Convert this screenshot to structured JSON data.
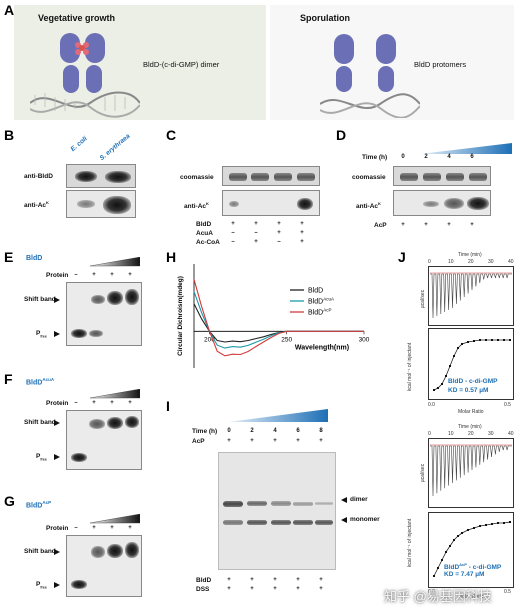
{
  "panels": {
    "A": {
      "label": "A",
      "left_title": "Vegetative growth",
      "left_caption": "BldD-(c-di-GMP) dimer",
      "right_title": "Sporulation",
      "right_caption": "BldD protomers"
    },
    "B": {
      "label": "B",
      "col1": "E. coli",
      "col2": "S. erythraea",
      "row1": "anti-BldD",
      "row2": "anti-Ac"
    },
    "C": {
      "label": "C",
      "row1": "coomassie",
      "row2": "anti-Ac",
      "rows": [
        {
          "name": "BldD",
          "vals": [
            "+",
            "+",
            "+",
            "+"
          ]
        },
        {
          "name": "AcuA",
          "vals": [
            "–",
            "–",
            "+",
            "+"
          ]
        },
        {
          "name": "Ac-CoA",
          "vals": [
            "–",
            "+",
            "–",
            "+"
          ]
        }
      ]
    },
    "D": {
      "label": "D",
      "time_label": "Time (h)",
      "times": [
        "0",
        "2",
        "4",
        "6"
      ],
      "row1": "coomassie",
      "row2": "anti-Ac",
      "acp_label": "AcP",
      "acp_vals": [
        "+",
        "+",
        "+",
        "+"
      ]
    },
    "E": {
      "label": "E",
      "title": "BldD",
      "protein": "Protein",
      "protein_vals": [
        "–",
        "+",
        "+",
        "+"
      ],
      "shift": "Shift band",
      "pfree": "P"
    },
    "F": {
      "label": "F",
      "title": "BldD",
      "title_sup": "AcuA",
      "protein": "Protein",
      "protein_vals": [
        "–",
        "+",
        "+",
        "+"
      ],
      "shift": "Shift band",
      "pfree": "P"
    },
    "G": {
      "label": "G",
      "title": "BldD",
      "title_sup": "AcP",
      "protein": "Protein",
      "protein_vals": [
        "–",
        "+",
        "+",
        "+"
      ],
      "shift": "Shift band",
      "pfree": "P"
    },
    "H": {
      "label": "H",
      "ylabel": "Circular Dichroism(mdeg)",
      "xlabel": "Wavelength(nm)"
    },
    "I": {
      "label": "I",
      "time_label": "Time (h)",
      "times": [
        "0",
        "2",
        "4",
        "6",
        "8"
      ],
      "acp_label": "AcP",
      "acp_vals": [
        "+",
        "+",
        "+",
        "+",
        "+"
      ],
      "dimer": "dimer",
      "monomer": "monomer",
      "rows": [
        {
          "name": "BldD",
          "vals": [
            "+",
            "+",
            "+",
            "+",
            "+"
          ]
        },
        {
          "name": "DSS",
          "vals": [
            "+",
            "+",
            "+",
            "+",
            "+"
          ]
        }
      ]
    },
    "J": {
      "label": "J",
      "top_xlabel": "Time (min)",
      "bottom_xlabel": "Molar Ratio",
      "ylabel_top": "µcal/sec",
      "ylabel_bottom": "kcal mol⁻¹ of injectant",
      "top_name": "BldD - c-di-GMP",
      "top_kd": "KD = 0.57 µM",
      "bottom_name": "BldD",
      "bottom_name_sup": "AcP",
      "bottom_name_rest": " - c-di-GMP",
      "bottom_kd": "KD = 7.47 µM",
      "top_ticks": [
        "0",
        "10",
        "20",
        "30",
        "40"
      ],
      "ratio_ticks": [
        "0.0",
        "0.5"
      ]
    }
  },
  "chart_data": {
    "type": "line",
    "xlabel": "Wavelength(nm)",
    "ylabel": "Circular Dichroism(mdeg)",
    "xlim": [
      190,
      300
    ],
    "x_ticks": [
      200,
      250,
      300
    ],
    "legend_position": "top-right",
    "series": [
      {
        "name": "BldD",
        "color": "#222222",
        "x": [
          190,
          195,
          200,
          205,
          210,
          215,
          220,
          225,
          230,
          235,
          240,
          245,
          250,
          260,
          280,
          300
        ],
        "y": [
          9,
          4,
          0,
          -3,
          -3.5,
          -3.2,
          -3.4,
          -3,
          -2.4,
          -1.8,
          -1,
          -0.4,
          0,
          0,
          0,
          0
        ]
      },
      {
        "name": "BldD",
        "sup": "AcuA",
        "color": "#1a9aa6",
        "x": [
          190,
          195,
          200,
          205,
          210,
          215,
          220,
          225,
          230,
          235,
          240,
          245,
          250,
          260,
          280,
          300
        ],
        "y": [
          13,
          6,
          0,
          -4.5,
          -5.5,
          -5,
          -5.2,
          -4.6,
          -3.6,
          -2.6,
          -1.4,
          -0.5,
          0,
          0,
          0,
          0
        ]
      },
      {
        "name": "BldD",
        "sup": "AcP",
        "color": "#d43a3a",
        "x": [
          190,
          195,
          200,
          205,
          210,
          215,
          220,
          225,
          230,
          235,
          240,
          245,
          250,
          260,
          280,
          300
        ],
        "y": [
          17,
          8,
          0,
          -6.5,
          -8,
          -7.5,
          -7.6,
          -6.6,
          -5,
          -3.5,
          -2,
          -0.7,
          0,
          0,
          0,
          0
        ]
      }
    ]
  },
  "watermark": "知乎 @易基因科技"
}
